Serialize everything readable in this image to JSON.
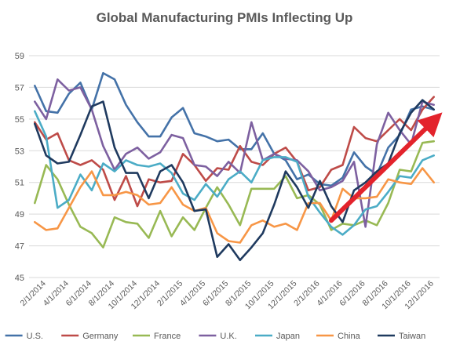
{
  "chart_data": {
    "type": "line",
    "title": "Global Manufacturing PMIs Inflecting Up",
    "xlabel": "",
    "ylabel": "",
    "ylim": [
      45,
      59
    ],
    "yticks": [
      45,
      47,
      49,
      51,
      53,
      55,
      57,
      59
    ],
    "grid": true,
    "legend_placement": "bottom",
    "x_tick_labels": [
      "2/1/2014",
      "4/1/2014",
      "6/1/2014",
      "8/1/2014",
      "10/1/2014",
      "12/1/2014",
      "2/1/2015",
      "4/1/2015",
      "6/1/2015",
      "8/1/2015",
      "10/1/2015",
      "12/1/2015",
      "2/1/2016",
      "4/1/2016",
      "6/1/2016",
      "8/1/2016",
      "10/1/2016",
      "12/1/2016"
    ],
    "x": [
      "1/1/2014",
      "2/1/2014",
      "3/1/2014",
      "4/1/2014",
      "5/1/2014",
      "6/1/2014",
      "7/1/2014",
      "8/1/2014",
      "9/1/2014",
      "10/1/2014",
      "11/1/2014",
      "12/1/2014",
      "1/1/2015",
      "2/1/2015",
      "3/1/2015",
      "4/1/2015",
      "5/1/2015",
      "6/1/2015",
      "7/1/2015",
      "8/1/2015",
      "9/1/2015",
      "10/1/2015",
      "11/1/2015",
      "12/1/2015",
      "1/1/2016",
      "2/1/2016",
      "3/1/2016",
      "4/1/2016",
      "5/1/2016",
      "6/1/2016",
      "7/1/2016",
      "8/1/2016",
      "9/1/2016",
      "10/1/2016",
      "11/1/2016",
      "12/1/2016"
    ],
    "series": [
      {
        "name": "U.S.",
        "color": "#4472a8",
        "values": [
          57.1,
          55.5,
          55.4,
          56.6,
          57.3,
          55.6,
          57.9,
          57.5,
          55.9,
          54.8,
          53.9,
          53.9,
          55.1,
          55.7,
          54.1,
          53.9,
          53.6,
          53.7,
          53.1,
          53.1,
          54.1,
          52.8,
          52.4,
          51.2,
          51.5,
          50.9,
          50.8,
          51.3,
          52.9,
          52.0,
          51.5,
          53.2,
          54.0,
          55.6,
          55.8,
          55.6
        ]
      },
      {
        "name": "Germany",
        "color": "#be4b48",
        "values": [
          54.8,
          53.7,
          54.1,
          52.4,
          52.1,
          52.4,
          51.8,
          49.9,
          51.4,
          49.5,
          51.2,
          51.0,
          51.1,
          52.8,
          52.1,
          51.1,
          51.9,
          51.8,
          53.3,
          52.3,
          52.1,
          52.8,
          53.2,
          52.3,
          50.5,
          50.7,
          51.8,
          52.1,
          54.5,
          53.8,
          53.6,
          54.3,
          55.0,
          54.3,
          55.6,
          56.4
        ]
      },
      {
        "name": "France",
        "color": "#98b954",
        "values": [
          49.7,
          52.1,
          51.2,
          49.6,
          48.2,
          47.8,
          46.9,
          48.8,
          48.5,
          48.4,
          47.5,
          49.2,
          47.6,
          48.8,
          48.0,
          49.4,
          50.7,
          49.6,
          48.3,
          50.6,
          50.6,
          50.6,
          51.4,
          50.0,
          50.2,
          49.6,
          48.0,
          48.4,
          48.3,
          48.6,
          48.3,
          49.7,
          51.8,
          51.7,
          53.5,
          53.6
        ]
      },
      {
        "name": "U.K.",
        "color": "#7d60a0",
        "values": [
          56.1,
          55.0,
          57.5,
          56.8,
          57.0,
          55.6,
          53.3,
          51.8,
          52.8,
          53.2,
          52.5,
          52.9,
          54.0,
          53.8,
          52.1,
          52.0,
          51.4,
          52.3,
          51.6,
          54.8,
          52.4,
          52.8,
          52.5,
          52.4,
          51.7,
          50.5,
          50.7,
          51.1,
          52.3,
          48.2,
          53.4,
          55.4,
          54.3,
          53.4,
          56.1,
          55.9
        ]
      },
      {
        "name": "Japan",
        "color": "#4bacc6",
        "values": [
          55.5,
          53.9,
          49.4,
          49.9,
          51.5,
          50.5,
          52.2,
          51.7,
          52.4,
          52.1,
          52.0,
          52.2,
          51.6,
          50.3,
          49.9,
          50.9,
          50.1,
          51.2,
          51.7,
          51.0,
          52.4,
          52.6,
          52.6,
          52.3,
          50.1,
          49.1,
          48.2,
          47.7,
          48.3,
          49.3,
          49.5,
          50.4,
          51.4,
          51.3,
          52.4,
          52.7
        ]
      },
      {
        "name": "China",
        "color": "#f79646",
        "values": [
          48.5,
          48.0,
          48.1,
          49.4,
          50.7,
          51.7,
          50.2,
          50.2,
          50.4,
          50.2,
          49.6,
          49.7,
          50.7,
          49.6,
          49.2,
          49.4,
          47.8,
          47.3,
          47.2,
          48.3,
          48.6,
          48.2,
          48.4,
          48.0,
          49.7,
          49.7,
          48.6,
          50.6,
          50.0,
          50.0,
          50.1,
          51.2,
          51.0,
          50.9,
          51.9,
          51.0
        ]
      },
      {
        "name": "Taiwan",
        "color": "#1f3a5f",
        "values": [
          54.7,
          52.7,
          52.2,
          52.3,
          54.0,
          55.8,
          56.1,
          53.2,
          51.6,
          51.6,
          50.0,
          51.7,
          52.1,
          51.0,
          49.2,
          49.3,
          46.3,
          47.1,
          46.1,
          46.9,
          47.8,
          49.6,
          51.7,
          50.7,
          49.4,
          51.1,
          49.5,
          48.5,
          50.5,
          51.0,
          51.7,
          52.2,
          54.1,
          55.4,
          56.2,
          55.6
        ]
      }
    ],
    "annotations": [
      {
        "type": "arrow",
        "color": "#e3232c",
        "from": {
          "x": "3/1/2016",
          "y": 48.6
        },
        "to": {
          "x": "12/1/2016",
          "y": 54.9
        }
      }
    ]
  }
}
